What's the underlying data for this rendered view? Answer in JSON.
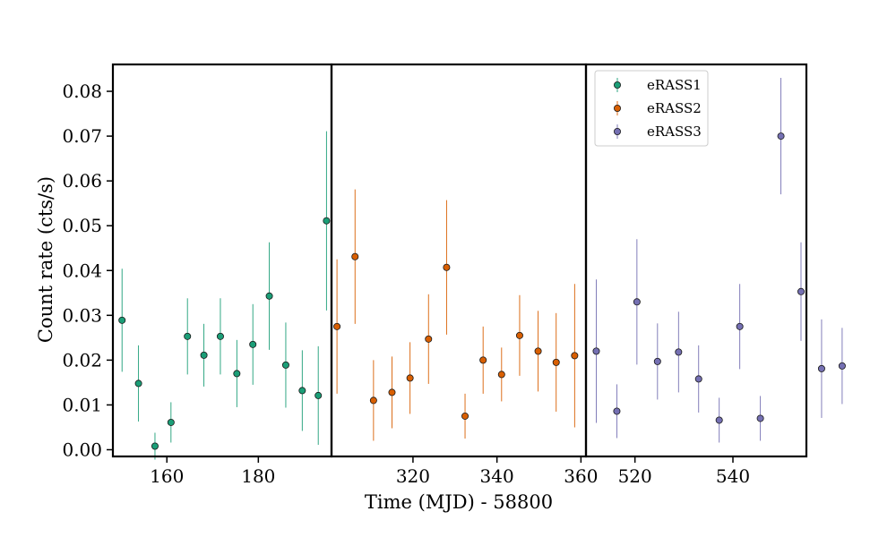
{
  "chart_data": {
    "type": "scatter",
    "xlabel": "Time (MJD) - 58800",
    "ylabel": "Count rate (cts/s)",
    "ylim": [
      -0.0015,
      0.086
    ],
    "yticks": [
      0.0,
      0.01,
      0.02,
      0.03,
      0.04,
      0.05,
      0.06,
      0.07,
      0.08
    ],
    "ytick_labels": [
      "0.00",
      "0.01",
      "0.02",
      "0.03",
      "0.04",
      "0.05",
      "0.06",
      "0.07",
      "0.08"
    ],
    "grid": false,
    "legend_position": "upper-right",
    "panels": [
      {
        "xlim": [
          148.2,
          196.0
        ],
        "xticks": [
          160,
          180
        ],
        "xtick_labels": [
          "160",
          "180"
        ]
      },
      {
        "xlim": [
          300.6,
          361.2
        ],
        "xticks": [
          320,
          340,
          360
        ],
        "xtick_labels": [
          "320",
          "340",
          "360"
        ]
      },
      {
        "xlim": [
          510.0,
          555.0
        ],
        "xticks": [
          520,
          540
        ],
        "xtick_labels": [
          "520",
          "540"
        ]
      }
    ],
    "series": [
      {
        "name": "eRASS1",
        "color": "#1b9e77",
        "panel": 0,
        "points": [
          {
            "x": 150.2,
            "y": 0.0289,
            "err": 0.0115
          },
          {
            "x": 153.8,
            "y": 0.0148,
            "err": 0.0085
          },
          {
            "x": 157.4,
            "y": 0.0008,
            "err": 0.003
          },
          {
            "x": 160.9,
            "y": 0.0061,
            "err": 0.0045
          },
          {
            "x": 164.5,
            "y": 0.0253,
            "err": 0.0085
          },
          {
            "x": 168.1,
            "y": 0.0211,
            "err": 0.007
          },
          {
            "x": 171.7,
            "y": 0.0253,
            "err": 0.0085
          },
          {
            "x": 175.3,
            "y": 0.017,
            "err": 0.0075
          },
          {
            "x": 178.8,
            "y": 0.0235,
            "err": 0.009
          },
          {
            "x": 182.4,
            "y": 0.0343,
            "err": 0.012
          },
          {
            "x": 186.0,
            "y": 0.0189,
            "err": 0.0095
          },
          {
            "x": 189.6,
            "y": 0.0132,
            "err": 0.009
          },
          {
            "x": 193.1,
            "y": 0.0121,
            "err": 0.011
          },
          {
            "x": 194.9,
            "y": 0.0511,
            "err": 0.02
          }
        ]
      },
      {
        "name": "eRASS2",
        "color": "#d95f02",
        "panel": 1,
        "points": [
          {
            "x": 301.9,
            "y": 0.0275,
            "err": 0.015
          },
          {
            "x": 306.2,
            "y": 0.0431,
            "err": 0.015
          },
          {
            "x": 310.6,
            "y": 0.011,
            "err": 0.009
          },
          {
            "x": 315.0,
            "y": 0.0128,
            "err": 0.008
          },
          {
            "x": 319.3,
            "y": 0.016,
            "err": 0.008
          },
          {
            "x": 323.7,
            "y": 0.0247,
            "err": 0.01
          },
          {
            "x": 328.0,
            "y": 0.0407,
            "err": 0.015
          },
          {
            "x": 332.4,
            "y": 0.0075,
            "err": 0.005
          },
          {
            "x": 336.7,
            "y": 0.02,
            "err": 0.0075
          },
          {
            "x": 341.1,
            "y": 0.0168,
            "err": 0.006
          },
          {
            "x": 345.4,
            "y": 0.0255,
            "err": 0.009
          },
          {
            "x": 349.8,
            "y": 0.022,
            "err": 0.009
          },
          {
            "x": 354.1,
            "y": 0.0195,
            "err": 0.011
          },
          {
            "x": 358.5,
            "y": 0.021,
            "err": 0.016
          }
        ]
      },
      {
        "name": "eRASS3",
        "color": "#7570b3",
        "panel": 2,
        "points": [
          {
            "x": 512.1,
            "y": 0.022,
            "err": 0.016
          },
          {
            "x": 516.3,
            "y": 0.0086,
            "err": 0.006
          },
          {
            "x": 520.4,
            "y": 0.033,
            "err": 0.014
          },
          {
            "x": 524.6,
            "y": 0.0197,
            "err": 0.0085
          },
          {
            "x": 528.9,
            "y": 0.0218,
            "err": 0.009
          },
          {
            "x": 533.0,
            "y": 0.0158,
            "err": 0.0075
          },
          {
            "x": 537.2,
            "y": 0.0066,
            "err": 0.005
          },
          {
            "x": 541.4,
            "y": 0.0275,
            "err": 0.0095
          },
          {
            "x": 545.6,
            "y": 0.007,
            "err": 0.005
          },
          {
            "x": 549.8,
            "y": 0.07,
            "err": 0.013
          },
          {
            "x": 553.9,
            "y": 0.0353,
            "err": 0.011
          },
          {
            "x": 558.1,
            "y": 0.0181,
            "err": 0.011
          },
          {
            "x": 562.3,
            "y": 0.0187,
            "err": 0.0085
          }
        ]
      }
    ]
  }
}
